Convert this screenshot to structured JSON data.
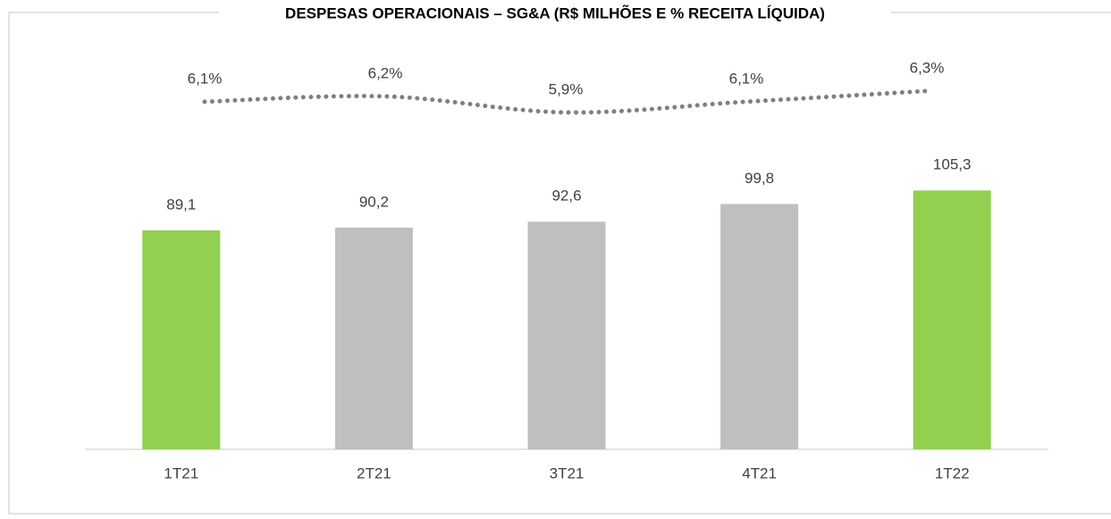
{
  "chart_data": {
    "type": "bar_line",
    "title": "DESPESAS OPERACIONAIS – SG&A (R$ MILHÕES E % RECEITA LÍQUIDA)",
    "categories": [
      "1T21",
      "2T21",
      "3T21",
      "4T21",
      "1T22"
    ],
    "series": [
      {
        "type": "bar",
        "colors": [
          "#92d050",
          "#bfbfbf",
          "#bfbfbf",
          "#bfbfbf",
          "#92d050"
        ],
        "values": [
          89.1,
          90.2,
          92.6,
          99.8,
          105.3
        ],
        "value_labels": [
          "89,1",
          "90,2",
          "92,6",
          "99,8",
          "105,3"
        ]
      },
      {
        "type": "line",
        "axis": "y2",
        "color": "#7f7f7f",
        "style": "dotted",
        "values": [
          6.1,
          6.2,
          5.9,
          6.1,
          6.3
        ],
        "value_labels": [
          "6,1%",
          "6,2%",
          "5,9%",
          "6,1%",
          "6,3%"
        ]
      }
    ],
    "ylim": [
      0,
      161
    ],
    "y2lim": [
      -0.4,
      7
    ]
  }
}
